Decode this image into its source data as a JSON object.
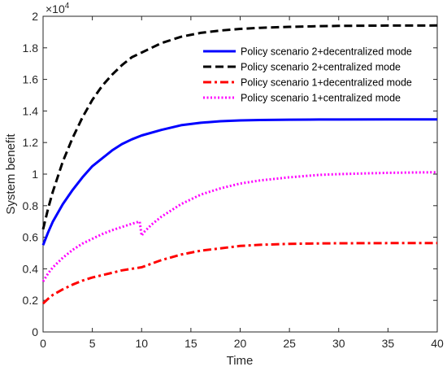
{
  "chart_data": {
    "type": "line",
    "title": "",
    "xlabel": "Time",
    "ylabel": "System benefit",
    "xlim": [
      0,
      40
    ],
    "ylim": [
      0,
      2
    ],
    "y_multiplier_base": "×10",
    "y_multiplier_exp": "4",
    "xticks": [
      0,
      5,
      10,
      15,
      20,
      25,
      30,
      35,
      40
    ],
    "yticks": [
      0,
      0.2,
      0.4,
      0.6,
      0.8,
      1,
      1.2,
      1.4,
      1.6,
      1.8,
      2
    ],
    "ytick_labels": [
      "0",
      "0.2",
      "0.4",
      "0.6",
      "0.8",
      "1",
      "1.2",
      "1.4",
      "1.6",
      "1.8",
      "2"
    ],
    "xtick_labels": [
      "0",
      "5",
      "10",
      "15",
      "20",
      "25",
      "30",
      "35",
      "40"
    ],
    "grid": false,
    "legend_position": "top-right",
    "series": [
      {
        "name": "Policy scenario 2+decentralized mode",
        "color": "#0000ff",
        "style": "solid",
        "x": [
          0,
          0.5,
          1,
          2,
          3,
          4,
          5,
          6,
          7,
          8,
          9,
          10,
          12,
          14,
          16,
          18,
          20,
          22,
          25,
          28,
          30,
          35,
          40
        ],
        "y": [
          0.55,
          0.63,
          0.7,
          0.81,
          0.9,
          0.98,
          1.05,
          1.1,
          1.15,
          1.19,
          1.22,
          1.245,
          1.28,
          1.31,
          1.325,
          1.335,
          1.34,
          1.343,
          1.345,
          1.346,
          1.346,
          1.347,
          1.347
        ]
      },
      {
        "name": "Policy scenario 2+centralized mode",
        "color": "#000000",
        "style": "dashed",
        "x": [
          0,
          0.5,
          1,
          2,
          3,
          4,
          5,
          6,
          7,
          8,
          9,
          10,
          12,
          14,
          16,
          18,
          20,
          22,
          25,
          28,
          30,
          35,
          40
        ],
        "y": [
          0.65,
          0.78,
          0.89,
          1.08,
          1.23,
          1.36,
          1.47,
          1.56,
          1.63,
          1.69,
          1.74,
          1.77,
          1.83,
          1.87,
          1.895,
          1.91,
          1.92,
          1.927,
          1.933,
          1.937,
          1.939,
          1.941,
          1.942
        ]
      },
      {
        "name": "Policy scenario 1+decentralized mode",
        "color": "#ff0000",
        "style": "dashdot",
        "x": [
          0,
          0.5,
          1,
          2,
          3,
          4,
          5,
          6,
          7,
          8,
          9,
          10,
          12,
          14,
          16,
          18,
          20,
          22,
          25,
          28,
          30,
          35,
          40
        ],
        "y": [
          0.18,
          0.21,
          0.235,
          0.27,
          0.3,
          0.325,
          0.345,
          0.36,
          0.375,
          0.39,
          0.4,
          0.41,
          0.455,
          0.49,
          0.515,
          0.53,
          0.545,
          0.552,
          0.558,
          0.561,
          0.562,
          0.563,
          0.563
        ]
      },
      {
        "name": "Policy scenario 1+centralized mode",
        "color": "#ff00ff",
        "style": "dotted",
        "x": [
          0,
          0.5,
          1,
          2,
          3,
          4,
          5,
          6,
          7,
          8,
          9,
          9.8,
          10,
          10.2,
          11,
          12,
          14,
          16,
          18,
          20,
          22,
          25,
          28,
          30,
          35,
          40
        ],
        "y": [
          0.32,
          0.37,
          0.41,
          0.47,
          0.52,
          0.56,
          0.59,
          0.62,
          0.645,
          0.665,
          0.685,
          0.7,
          0.61,
          0.63,
          0.68,
          0.73,
          0.81,
          0.87,
          0.91,
          0.94,
          0.96,
          0.98,
          0.995,
          1.0,
          1.008,
          1.012
        ]
      }
    ]
  }
}
